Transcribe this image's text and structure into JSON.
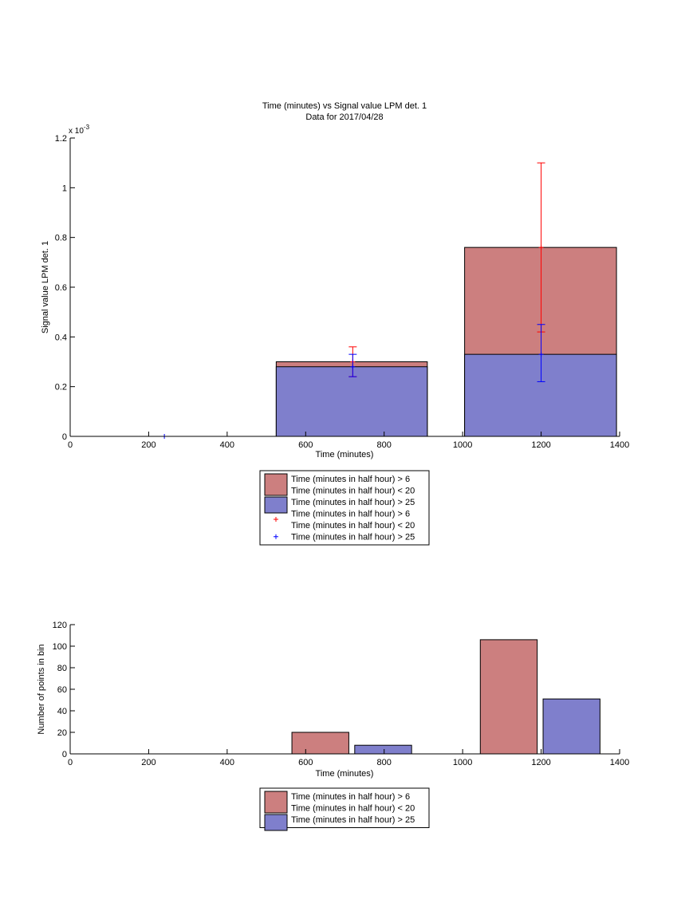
{
  "chart_data": [
    {
      "type": "bar",
      "title": "Time (minutes) vs Signal value LPM det. 1",
      "subtitle": "Data for 2017/04/28",
      "xlabel": "Time (minutes)",
      "ylabel": "Signal value LPM det. 1",
      "y_multiplier_label": "x 10",
      "y_multiplier_exp": "-3",
      "xlim": [
        0,
        1400
      ],
      "ylim": [
        0,
        1.2
      ],
      "xticks": [
        "0",
        "200",
        "400",
        "600",
        "800",
        "1000",
        "1200",
        "1400"
      ],
      "yticks": [
        "0",
        "0.2",
        "0.4",
        "0.6",
        "0.8",
        "1",
        "1.2"
      ],
      "grid": false,
      "legend_position": "below",
      "stacked": true,
      "bars": [
        {
          "x_start": 525,
          "x_end": 910,
          "base_top": 0.28,
          "total_top": 0.3
        },
        {
          "x_start": 1005,
          "x_end": 1392,
          "base_top": 0.33,
          "total_top": 0.76
        }
      ],
      "errorbars": [
        {
          "series": "red",
          "x": 720,
          "y": 0.3,
          "low": 0.24,
          "high": 0.36
        },
        {
          "series": "blue",
          "x": 720,
          "y": 0.28,
          "low": 0.24,
          "high": 0.33
        },
        {
          "series": "red",
          "x": 1200,
          "y": 0.76,
          "low": 0.42,
          "high": 1.1
        },
        {
          "series": "blue",
          "x": 1200,
          "y": 0.33,
          "low": 0.22,
          "high": 0.45
        },
        {
          "series": "blue",
          "x": 240,
          "y": 0.0,
          "low": 0.0,
          "high": 0.0
        }
      ],
      "legend": [
        {
          "kind": "bar",
          "color": "#cc7f7f",
          "lines": [
            "Time (minutes in half hour) > 6",
            "Time (minutes in half hour) < 20"
          ]
        },
        {
          "kind": "bar",
          "color": "#7f7fcc",
          "lines": [
            "Time (minutes in half hour) > 25"
          ]
        },
        {
          "kind": "marker",
          "color": "#ff0000",
          "lines": [
            "Time (minutes in half hour) > 6",
            "Time (minutes in half hour) < 20"
          ]
        },
        {
          "kind": "marker",
          "color": "#0000ff",
          "lines": [
            "Time (minutes in half hour) > 25"
          ]
        }
      ]
    },
    {
      "type": "bar",
      "xlabel": "Time (minutes)",
      "ylabel": "Number of points in bin",
      "xlim": [
        0,
        1400
      ],
      "ylim": [
        0,
        120
      ],
      "xticks": [
        "0",
        "200",
        "400",
        "600",
        "800",
        "1000",
        "1200",
        "1400"
      ],
      "yticks": [
        "0",
        "20",
        "40",
        "60",
        "80",
        "100",
        "120"
      ],
      "grid": false,
      "legend_position": "below",
      "bars": [
        {
          "series": "red",
          "x_start": 565,
          "x_end": 710,
          "value": 20
        },
        {
          "series": "blue",
          "x_start": 725,
          "x_end": 870,
          "value": 8
        },
        {
          "series": "red",
          "x_start": 1045,
          "x_end": 1190,
          "value": 106
        },
        {
          "series": "blue",
          "x_start": 1205,
          "x_end": 1350,
          "value": 51
        }
      ],
      "legend": [
        {
          "kind": "bar",
          "color": "#cc7f7f",
          "lines": [
            "Time (minutes in half hour) > 6",
            "Time (minutes in half hour) < 20"
          ]
        },
        {
          "kind": "bar",
          "color": "#7f7fcc",
          "lines": [
            "Time (minutes in half hour) > 25"
          ]
        }
      ]
    }
  ],
  "colors": {
    "red_bar": "#cc7f7f",
    "blue_bar": "#7f7fcc",
    "red_marker": "#ff0000",
    "blue_marker": "#0000ff",
    "axis": "#000000"
  }
}
